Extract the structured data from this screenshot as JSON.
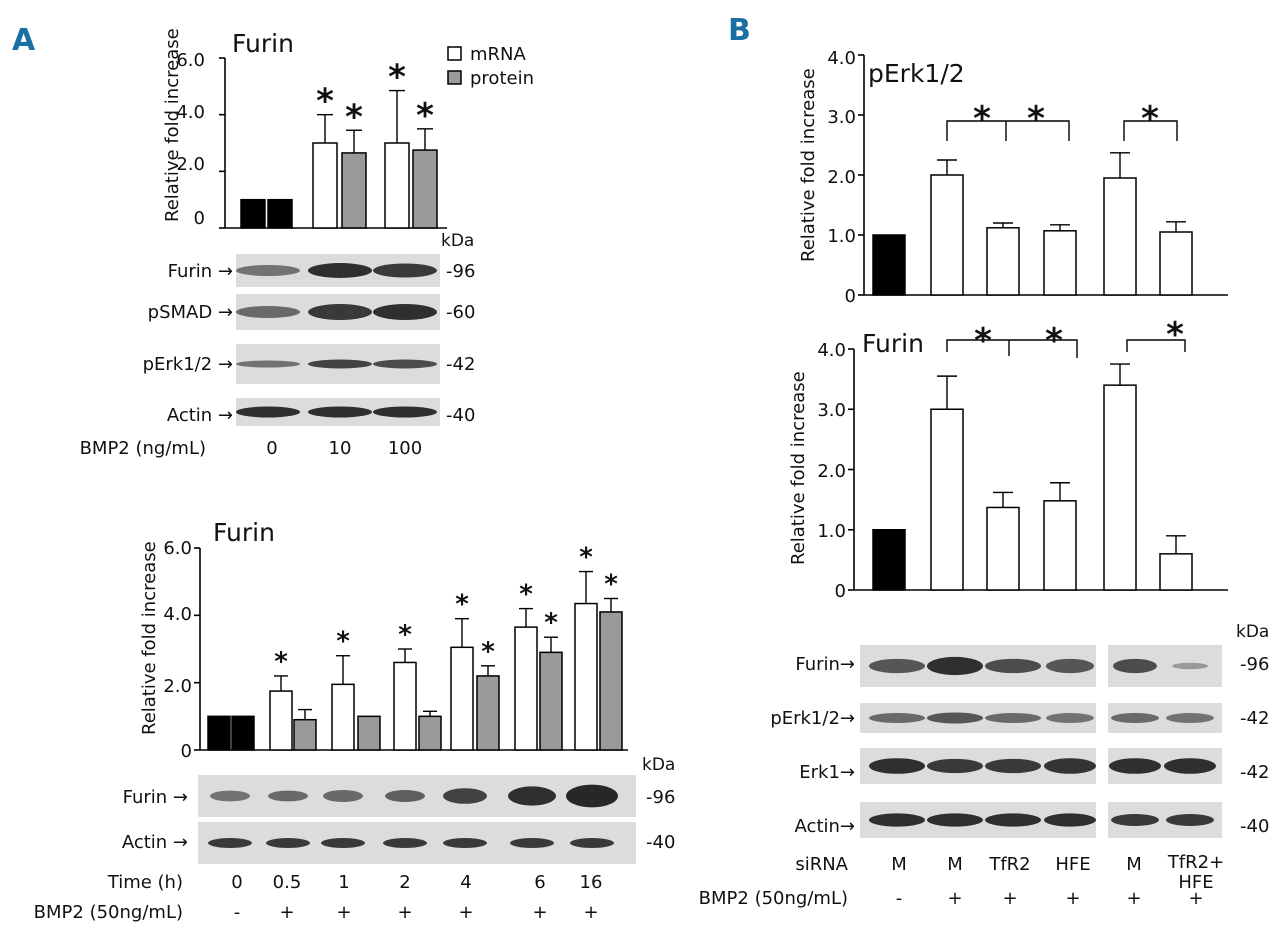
{
  "panels": {
    "a": "A",
    "b": "B"
  },
  "common": {
    "ylabel": "Relative fold increase",
    "kda": "kDa",
    "star": "*"
  },
  "chart_data": [
    {
      "id": "A_top",
      "type": "bar",
      "title": "Furin",
      "ylabel": "Relative fold increase",
      "ylim": [
        0,
        6.0
      ],
      "yticks": [
        "0",
        "2.0",
        "4.0",
        "6.0"
      ],
      "categories": [
        "0",
        "10",
        "100"
      ],
      "series": [
        {
          "name": "mRNA",
          "values": [
            1.0,
            3.0,
            3.0
          ],
          "err": [
            0,
            1.0,
            1.85
          ]
        },
        {
          "name": "protein",
          "values": [
            1.0,
            2.65,
            2.75
          ],
          "err": [
            0,
            0.8,
            0.75
          ]
        }
      ],
      "legend": [
        "mRNA",
        "protein"
      ],
      "control_fill": "#000000",
      "significant": [
        "10 mRNA",
        "10 protein",
        "100 mRNA",
        "100 protein"
      ]
    },
    {
      "id": "A_bottom",
      "type": "bar",
      "title": "Furin",
      "ylabel": "Relative fold increase",
      "ylim": [
        0,
        6.0
      ],
      "yticks": [
        "0",
        "2.0",
        "4.0",
        "6.0"
      ],
      "categories": [
        "0",
        "0.5",
        "1",
        "2",
        "4",
        "6",
        "16"
      ],
      "series": [
        {
          "name": "mRNA",
          "values": [
            1.0,
            1.75,
            1.95,
            2.6,
            3.05,
            3.65,
            4.35
          ],
          "err": [
            0,
            0.45,
            0.85,
            0.4,
            0.85,
            0.55,
            0.95
          ]
        },
        {
          "name": "protein",
          "values": [
            1.0,
            0.9,
            1.0,
            1.0,
            2.2,
            2.9,
            4.1
          ],
          "err": [
            0,
            0.3,
            0,
            0.15,
            0.3,
            0.45,
            0.4
          ]
        }
      ],
      "significant": [
        "0.5 mRNA",
        "1 mRNA",
        "2 mRNA",
        "4 mRNA",
        "4 protein",
        "6 mRNA",
        "6 protein",
        "16 mRNA",
        "16 protein"
      ]
    },
    {
      "id": "B_top",
      "type": "bar",
      "title": "pErk1/2",
      "ylabel": "Relative fold increase",
      "ylim": [
        0,
        4.0
      ],
      "yticks": [
        "0",
        "1.0",
        "2.0",
        "3.0",
        "4.0"
      ],
      "categories": [
        "M -",
        "M +",
        "TfR2 +",
        "HFE +",
        "M +",
        "TfR2+HFE +"
      ],
      "values": [
        1.0,
        2.0,
        1.12,
        1.07,
        1.95,
        1.05
      ],
      "err": [
        0,
        0.25,
        0.08,
        0.1,
        0.42,
        0.17
      ]
    },
    {
      "id": "B_mid",
      "type": "bar",
      "title": "Furin",
      "ylabel": "Relative fold increase",
      "ylim": [
        0,
        4.0
      ],
      "yticks": [
        "0",
        "1.0",
        "2.0",
        "3.0",
        "4.0"
      ],
      "categories": [
        "M -",
        "M +",
        "TfR2 +",
        "HFE +",
        "M +",
        "TfR2+HFE +"
      ],
      "values": [
        1.0,
        3.0,
        1.37,
        1.48,
        3.4,
        0.6
      ],
      "err": [
        0,
        0.55,
        0.25,
        0.3,
        0.35,
        0.3
      ]
    }
  ],
  "blots": {
    "a_top": [
      {
        "label": "Furin →",
        "kda": "-96"
      },
      {
        "label": "pSMAD →",
        "kda": "-60"
      },
      {
        "label": "pErk1/2 →",
        "kda": "-42"
      },
      {
        "label": "Actin →",
        "kda": "-40"
      }
    ],
    "a_bottom": [
      {
        "label": "Furin →",
        "kda": "-96"
      },
      {
        "label": "Actin →",
        "kda": "-40"
      }
    ],
    "b": [
      {
        "label": "Furin→",
        "kda": "-96"
      },
      {
        "label": "pErk1/2→",
        "kda": "-42"
      },
      {
        "label": "Erk1→",
        "kda": "-42"
      },
      {
        "label": "Actin→",
        "kda": "-40"
      }
    ]
  },
  "conditions": {
    "a_top": {
      "title": "BMP2 (ng/mL)",
      "values": [
        "0",
        "10",
        "100"
      ]
    },
    "a_bottom": {
      "time_title": "Time (h)",
      "time_values": [
        "0",
        "0.5",
        "1",
        "2",
        "4",
        "6",
        "16"
      ],
      "bmp_title": "BMP2 (50ng/mL)",
      "bmp_values": [
        "-",
        "+",
        "+",
        "+",
        "+",
        "+",
        "+"
      ]
    },
    "b": {
      "sirna_title": "siRNA",
      "sirna_values": [
        "M",
        "M",
        "TfR2",
        "HFE",
        "M",
        "TfR2+",
        "HFE"
      ],
      "bmp_title": "BMP2 (50ng/mL)",
      "bmp_values": [
        "-",
        "+",
        "+",
        "+",
        "+",
        "+"
      ]
    }
  },
  "colors": {
    "mrna": "#ffffff",
    "protein": "#9a9a9a",
    "control": "#000000",
    "panel_letter": "#1a6fa3"
  }
}
